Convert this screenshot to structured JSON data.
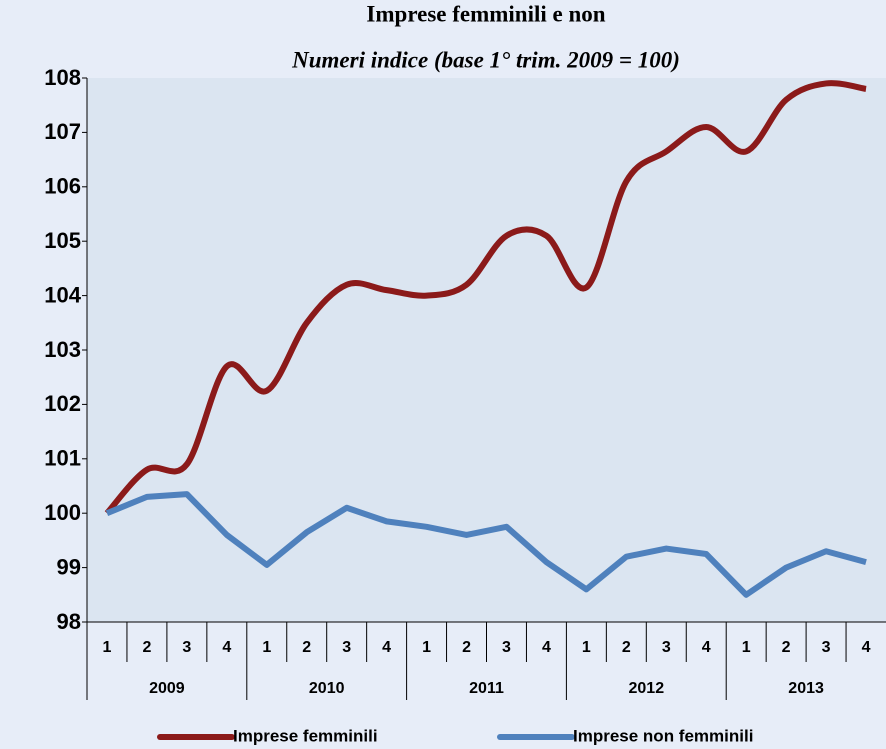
{
  "chart_data": {
    "type": "line",
    "title": "Imprese femminili e non",
    "subtitle": "Numeri indice (base 1° trim. 2009 = 100)",
    "categories": [
      "1",
      "2",
      "3",
      "4",
      "1",
      "2",
      "3",
      "4",
      "1",
      "2",
      "3",
      "4",
      "1",
      "2",
      "3",
      "4",
      "1",
      "2",
      "3",
      "4"
    ],
    "category_groups": [
      "2009",
      "2010",
      "2011",
      "2012",
      "2013"
    ],
    "series": [
      {
        "name": "Imprese femminili",
        "color": "#8b1a1a",
        "smooth": true,
        "values": [
          100,
          100.8,
          100.9,
          102.7,
          102.25,
          103.5,
          104.2,
          104.1,
          104.0,
          104.2,
          105.1,
          105.1,
          104.15,
          106.1,
          106.65,
          107.1,
          106.65,
          107.6,
          107.9,
          107.8
        ]
      },
      {
        "name": "Imprese non femminili",
        "color": "#4f81bd",
        "smooth": false,
        "values": [
          100,
          100.3,
          100.35,
          99.6,
          99.05,
          99.65,
          100.1,
          99.85,
          99.75,
          99.6,
          99.75,
          99.1,
          98.6,
          99.2,
          99.35,
          99.25,
          98.5,
          99.0,
          99.3,
          99.1
        ]
      }
    ],
    "ylim": [
      98,
      108
    ],
    "yticks": [
      98,
      99,
      100,
      101,
      102,
      103,
      104,
      105,
      106,
      107,
      108
    ],
    "legend": "bottom"
  }
}
